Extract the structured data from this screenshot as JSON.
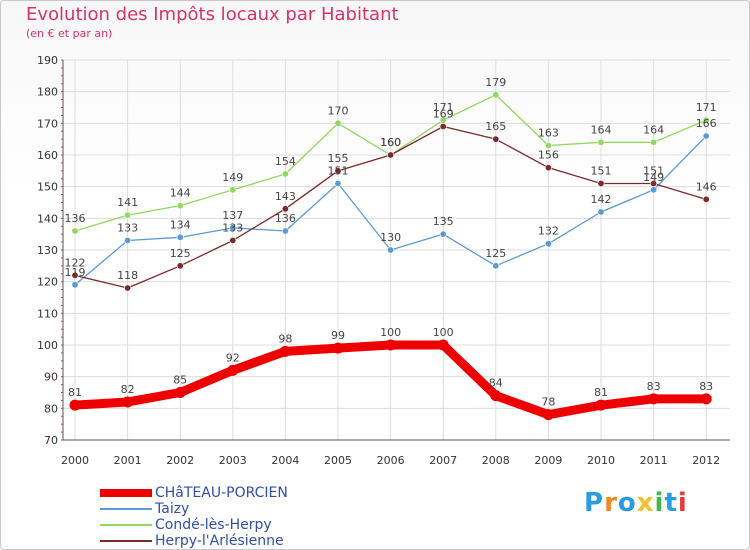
{
  "chart_data": {
    "type": "line",
    "title": "Evolution des Impôts locaux par Habitant",
    "subtitle": "(en € et par an)",
    "categories": [
      "2000",
      "2001",
      "2002",
      "2003",
      "2004",
      "2005",
      "2006",
      "2007",
      "2008",
      "2009",
      "2010",
      "2011",
      "2012"
    ],
    "ylim": [
      70,
      190
    ],
    "yticks": [
      70,
      80,
      90,
      100,
      110,
      120,
      130,
      140,
      150,
      160,
      170,
      180,
      190
    ],
    "grid": true,
    "series": [
      {
        "name": "CHâTEAU-PORCIEN",
        "color": "#ee0000",
        "values": [
          81,
          82,
          85,
          92,
          98,
          99,
          100,
          100,
          84,
          78,
          81,
          83,
          83
        ]
      },
      {
        "name": "Taizy",
        "color": "#5b9bd5",
        "values": [
          119,
          133,
          134,
          137,
          136,
          151,
          130,
          135,
          125,
          132,
          142,
          149,
          166
        ]
      },
      {
        "name": "Condé-lès-Herpy",
        "color": "#90d860",
        "values": [
          136,
          141,
          144,
          149,
          154,
          170,
          160,
          171,
          179,
          163,
          164,
          164,
          171
        ]
      },
      {
        "name": "Herpy-l'Arlésienne",
        "color": "#7a2a2a",
        "values": [
          122,
          118,
          125,
          133,
          143,
          155,
          160,
          169,
          165,
          156,
          151,
          151,
          146
        ]
      }
    ]
  },
  "logo": {
    "letters": [
      "P",
      "r",
      "o",
      "x",
      "i",
      "t",
      "i"
    ],
    "colors": [
      "#2a9de0",
      "#f08a20",
      "#2a9de0",
      "#f2c12e",
      "#44b84a",
      "#2a9de0",
      "#e03a3a"
    ]
  }
}
